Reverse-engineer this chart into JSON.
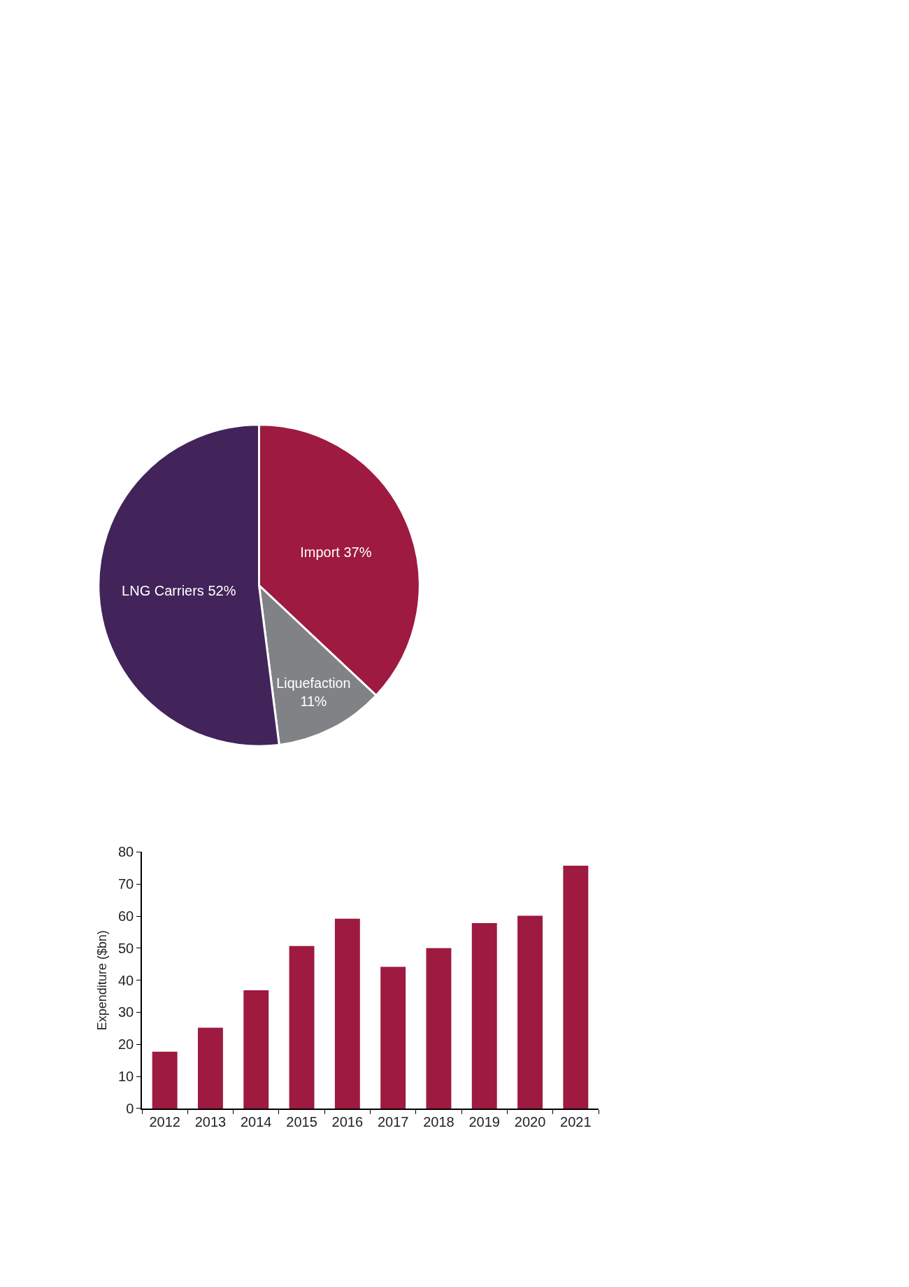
{
  "chart_data": [
    {
      "type": "pie",
      "categories": [
        "Import",
        "Liquefaction",
        "LNG Carriers"
      ],
      "values": [
        37,
        11,
        52
      ],
      "colors": [
        "#9e1a40",
        "#808285",
        "#42235a"
      ],
      "value_labels": [
        "37%",
        "11%",
        "52%"
      ]
    },
    {
      "type": "bar",
      "categories": [
        "2012",
        "2013",
        "2014",
        "2015",
        "2016",
        "2017",
        "2018",
        "2019",
        "2020",
        "2021"
      ],
      "values": [
        17.7,
        25.2,
        36.9,
        50.7,
        59.2,
        44.2,
        50.0,
        57.8,
        60.1,
        75.7
      ],
      "color": "#9e1a40",
      "ylabel": "Expenditure ($bn)",
      "ylim": [
        0,
        80
      ],
      "yticks": [
        0,
        10,
        20,
        30,
        40,
        50,
        60,
        70,
        80
      ]
    }
  ]
}
